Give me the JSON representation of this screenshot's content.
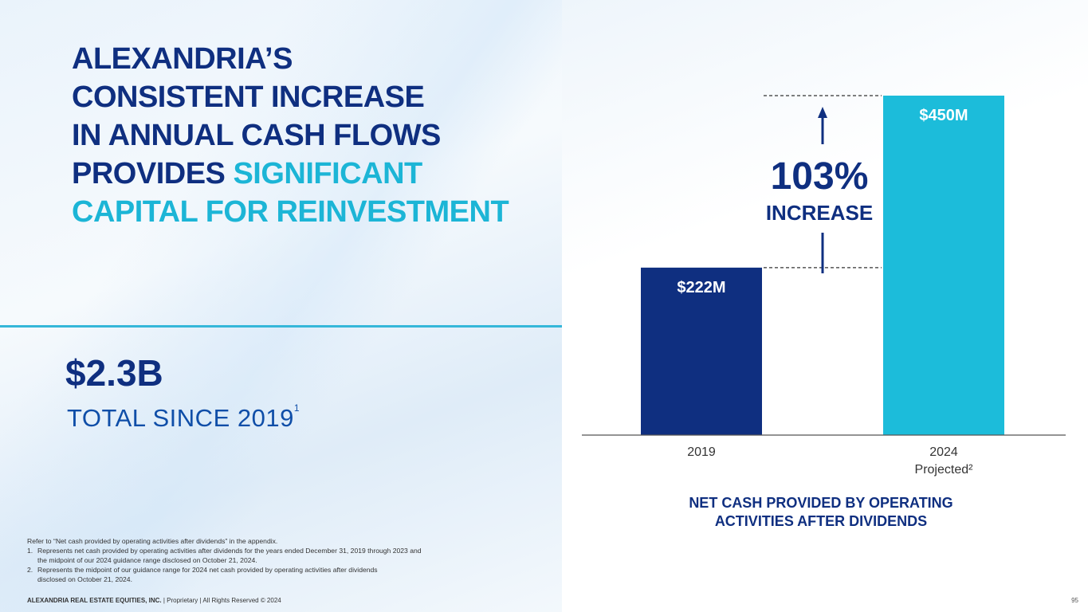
{
  "title": {
    "line1": "ALEXANDRIA’S",
    "line2": "CONSISTENT INCREASE",
    "line3": "IN ANNUAL CASH FLOWS",
    "line4_prefix": "PROVIDES ",
    "line4_accent": "SIGNIFICANT",
    "line5": "CAPITAL FOR REINVESTMENT"
  },
  "summary": {
    "value": "$2.3B",
    "label": "TOTAL SINCE 2019",
    "label_sup": "1"
  },
  "chart_data": {
    "type": "bar",
    "categories": [
      "2019",
      "2024"
    ],
    "category_sublabels": [
      "",
      "Projected²"
    ],
    "values": [
      222,
      450
    ],
    "unit": "$M",
    "data_labels": [
      "$222M",
      "$450M"
    ],
    "colors": [
      "#0f2f80",
      "#1cbcda"
    ],
    "ylim": [
      0,
      450
    ],
    "grid": false,
    "annotation": {
      "value": "103%",
      "label": "INCREASE"
    },
    "caption_line1": "NET CASH PROVIDED BY OPERATING",
    "caption_line2": "ACTIVITIES AFTER DIVIDENDS"
  },
  "footnotes": {
    "intro": "Refer to “Net cash provided by operating activities after dividends” in the appendix.",
    "items": [
      {
        "num": "1.",
        "line1": "Represents net cash provided by operating activities after dividends for the years ended December 31, 2019 through 2023 and",
        "line2": "the midpoint of our 2024 guidance range disclosed on October 21, 2024."
      },
      {
        "num": "2.",
        "line1": "Represents the midpoint of our guidance range for 2024 net cash provided by operating activities after dividends",
        "line2": "disclosed on October 21, 2024."
      }
    ]
  },
  "footer": {
    "company": "ALEXANDRIA REAL ESTATE EQUITIES, INC.",
    "rest": " | Proprietary | All Rights Reserved © 2024",
    "page_number": "95"
  }
}
